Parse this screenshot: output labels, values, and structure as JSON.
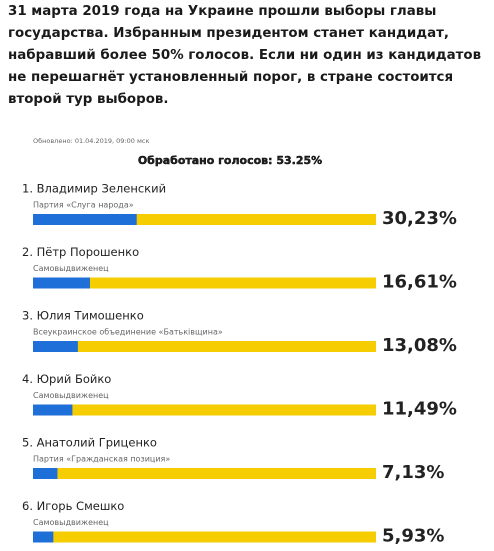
{
  "intro": [
    "31 марта 2019 года на Украине прошли выборы главы",
    "государства. Избранным президентом станет кандидат,",
    "набравший более 50% голосов. Если ни один из кандидатов",
    "не перешагнёт установленный порог, в стране состоится",
    "второй тур выборов."
  ],
  "chart_data": {
    "type": "bar",
    "orientation": "horizontal",
    "updated": "Обновлено: 01.04.2019, 09:00 мск",
    "subtitle": "Обработано голосов: 53.25%",
    "categories": [
      "1. Владимир Зеленский",
      "2. Пётр Порошенко",
      "3. Юлия Тимошенко",
      "4. Юрий Бойко",
      "5. Анатолий Гриценко",
      "6. Игорь Смешко"
    ],
    "parties": [
      "Партия «Слуга народа»",
      "Самовыдвиженец",
      "Всеукраинское объединение «Батьківщина»",
      "Самовыдвиженец",
      "Партия «Гражданская позиция»",
      "Самовыдвиженец"
    ],
    "values": [
      30.23,
      16.61,
      13.08,
      11.49,
      7.13,
      5.93
    ],
    "value_labels": [
      "30,23%",
      "16,61%",
      "13,08%",
      "11,49%",
      "7,13%",
      "5,93%"
    ],
    "xlim": [
      0,
      100
    ],
    "color": "#1f6fd8",
    "track_color": "#f6cd00"
  }
}
